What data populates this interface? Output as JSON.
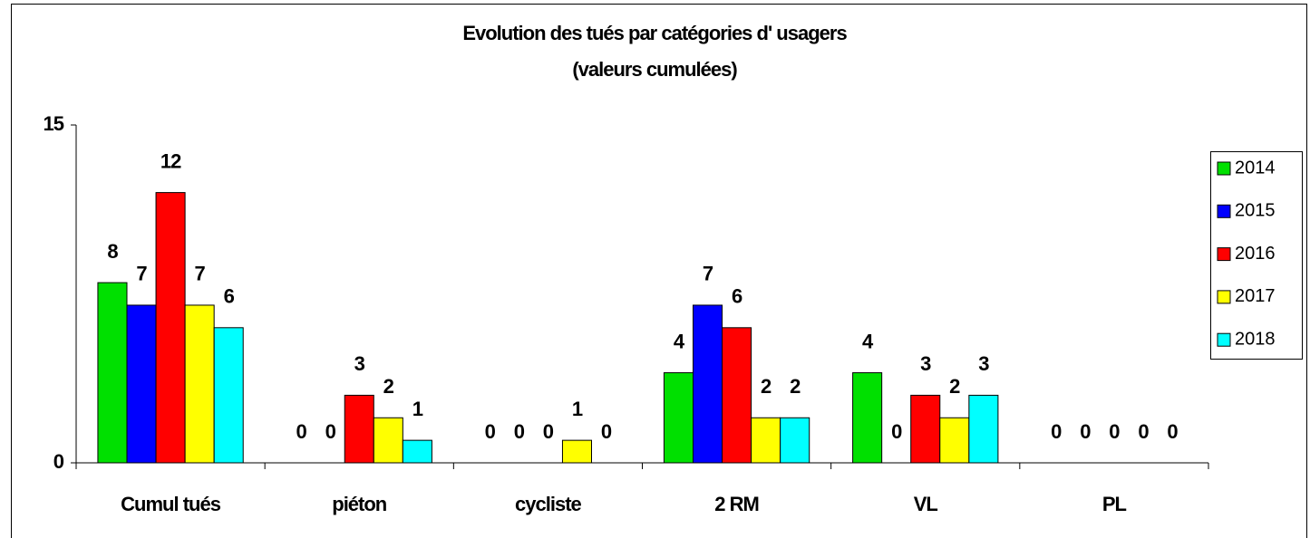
{
  "chart_data": {
    "type": "bar",
    "title": "Evolution des tués par catégories d' usagers",
    "subtitle": "(valeurs cumulées)",
    "categories": [
      "Cumul tués",
      "piéton",
      "cycliste",
      "2 RM",
      "VL",
      "PL"
    ],
    "series": [
      {
        "name": "2014",
        "color": "#00e000",
        "values": [
          8,
          0,
          0,
          4,
          4,
          0
        ]
      },
      {
        "name": "2015",
        "color": "#0000ff",
        "values": [
          7,
          0,
          0,
          7,
          0,
          0
        ]
      },
      {
        "name": "2016",
        "color": "#ff0000",
        "values": [
          12,
          3,
          0,
          6,
          3,
          0
        ]
      },
      {
        "name": "2017",
        "color": "#ffff00",
        "values": [
          7,
          2,
          1,
          2,
          2,
          0
        ]
      },
      {
        "name": "2018",
        "color": "#00ffff",
        "values": [
          6,
          1,
          0,
          2,
          3,
          0
        ]
      }
    ],
    "ylim": [
      0,
      15
    ],
    "yticks": [
      0,
      15
    ],
    "grid": false,
    "legend": "right"
  }
}
